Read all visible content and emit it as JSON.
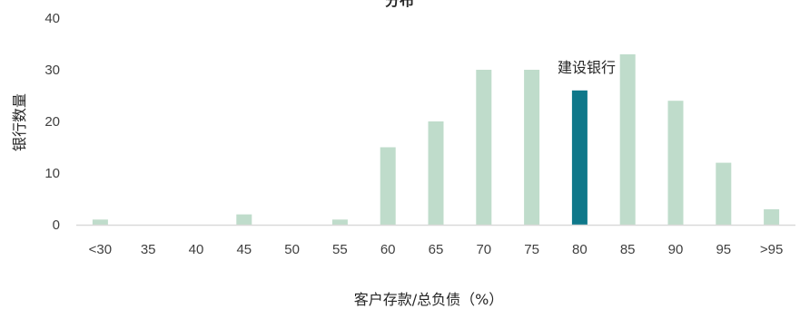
{
  "chart_data": {
    "type": "bar",
    "title": "分布",
    "xlabel": "客户存款/总负债（%）",
    "ylabel": "银行数量",
    "ylim": [
      0,
      40
    ],
    "yticks": [
      0,
      10,
      20,
      30,
      40
    ],
    "grid": false,
    "categories": [
      "<30",
      "35",
      "40",
      "45",
      "50",
      "55",
      "60",
      "65",
      "70",
      "75",
      "80",
      "85",
      "90",
      "95",
      ">95"
    ],
    "values": [
      1,
      0,
      0,
      2,
      0,
      1,
      15,
      20,
      30,
      30,
      26,
      33,
      24,
      12,
      3
    ],
    "highlight": {
      "category": "80",
      "label": "建设银行"
    },
    "colors": {
      "bar": "#bfdccb",
      "highlight": "#0e788a",
      "axis": "#d9d9d9"
    }
  }
}
